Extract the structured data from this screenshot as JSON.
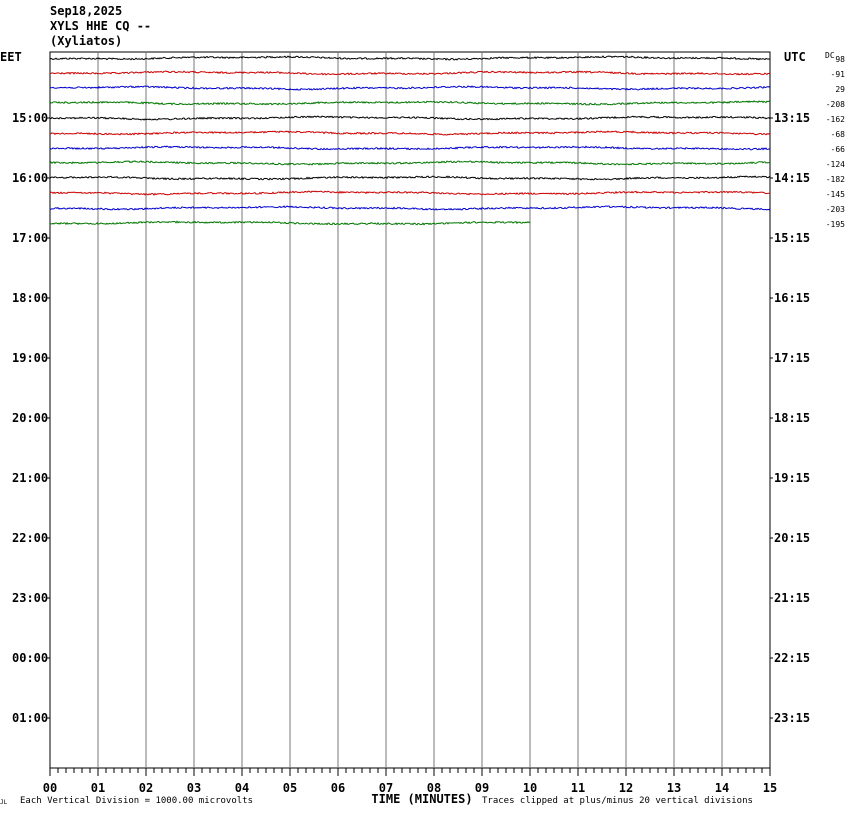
{
  "header": {
    "date": "Sep18,2025",
    "station": "XYLS HHE CQ --",
    "location": "(Xyliatos)"
  },
  "chart_data": {
    "type": "line",
    "title": "",
    "left_axis_label": "EET",
    "right_axis_label": "UTC",
    "dc_label": "DC",
    "xlabel": "TIME (MINUTES)",
    "x_ticks": [
      "00",
      "01",
      "02",
      "03",
      "04",
      "05",
      "06",
      "07",
      "08",
      "09",
      "10",
      "11",
      "12",
      "13",
      "14",
      "15"
    ],
    "xlim": [
      0,
      15
    ],
    "left_hour_labels": [
      "15:00",
      "16:00",
      "17:00",
      "18:00",
      "19:00",
      "20:00",
      "21:00",
      "22:00",
      "23:00",
      "00:00",
      "01:00"
    ],
    "right_hour_labels": [
      "13:15",
      "14:15",
      "15:15",
      "16:15",
      "17:15",
      "18:15",
      "19:15",
      "20:15",
      "21:15",
      "22:15",
      "23:15"
    ],
    "rows_per_hour": 4,
    "total_rows": 48,
    "grid": "vertical lines every minute",
    "trace_colors": [
      "#000000",
      "#cc0000",
      "#0000cc",
      "#007700"
    ],
    "traces": [
      {
        "row": 0,
        "dc_offset": "98",
        "end_minute": 15
      },
      {
        "row": 1,
        "dc_offset": "-91",
        "end_minute": 15
      },
      {
        "row": 2,
        "dc_offset": "29",
        "end_minute": 15
      },
      {
        "row": 3,
        "dc_offset": "-208",
        "end_minute": 15
      },
      {
        "row": 4,
        "dc_offset": "-162",
        "end_minute": 15
      },
      {
        "row": 5,
        "dc_offset": "-68",
        "end_minute": 15
      },
      {
        "row": 6,
        "dc_offset": "-66",
        "end_minute": 15
      },
      {
        "row": 7,
        "dc_offset": "-124",
        "end_minute": 15
      },
      {
        "row": 8,
        "dc_offset": "-182",
        "end_minute": 15
      },
      {
        "row": 9,
        "dc_offset": "-145",
        "end_minute": 15
      },
      {
        "row": 10,
        "dc_offset": "-203",
        "end_minute": 15
      },
      {
        "row": 11,
        "dc_offset": "-195",
        "end_minute": 10
      }
    ]
  },
  "footer": {
    "corner_mark": "JL",
    "scale_note": "Each Vertical Division = 1000.00 microvolts",
    "clip_note": "Traces clipped at plus/minus 20 vertical divisions"
  }
}
